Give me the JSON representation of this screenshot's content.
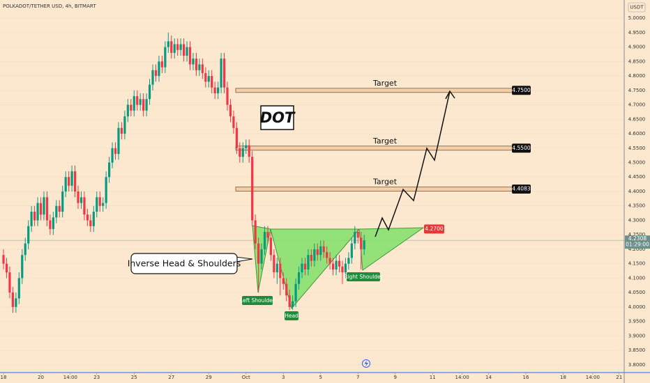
{
  "chart_data": {
    "type": "candlestick",
    "title": "POLKADOT/TETHER USD, 4h, BITMART",
    "y_unit": "USDT",
    "x": [
      0,
      4,
      8,
      12,
      16,
      20,
      24,
      28,
      32,
      36,
      40,
      44,
      48,
      52,
      56,
      60,
      64,
      68,
      72,
      76,
      80,
      84,
      88,
      92,
      96,
      100,
      104,
      108,
      112,
      116,
      120,
      124,
      128,
      132,
      136,
      140,
      144,
      148,
      152,
      156,
      160,
      164,
      168,
      172,
      176,
      180,
      184,
      188,
      192,
      196,
      200,
      204,
      208,
      212,
      216,
      220,
      224,
      228,
      232,
      236,
      240,
      244,
      248,
      252,
      256,
      260,
      264,
      268,
      272,
      276,
      280,
      284,
      288,
      292,
      296,
      300,
      304,
      308,
      312,
      316,
      320,
      324,
      328,
      332,
      336,
      340,
      344,
      348,
      352,
      356,
      360,
      364,
      368,
      372,
      376,
      380,
      384,
      388,
      392,
      396,
      400,
      404,
      408,
      412,
      416,
      420,
      424,
      428,
      432,
      436,
      440,
      444,
      448,
      452,
      456,
      460,
      464
    ],
    "open": [
      4.18,
      4.15,
      4.12,
      4.05,
      4.0,
      4.03,
      4.1,
      4.18,
      4.22,
      4.28,
      4.33,
      4.3,
      4.36,
      4.32,
      4.38,
      4.3,
      4.27,
      4.31,
      4.35,
      4.33,
      4.4,
      4.45,
      4.42,
      4.47,
      4.4,
      4.36,
      4.38,
      4.32,
      4.3,
      4.28,
      4.33,
      4.38,
      4.35,
      4.36,
      4.45,
      4.5,
      4.55,
      4.53,
      4.62,
      4.6,
      4.66,
      4.7,
      4.68,
      4.73,
      4.7,
      4.72,
      4.68,
      4.72,
      4.77,
      4.82,
      4.8,
      4.85,
      4.83,
      4.9,
      4.92,
      4.88,
      4.91,
      4.89,
      4.91,
      4.87,
      4.9,
      4.84,
      4.86,
      4.82,
      4.84,
      4.81,
      4.78,
      4.8,
      4.76,
      4.74,
      4.76,
      4.86,
      4.76,
      4.7,
      4.66,
      4.62,
      4.55,
      4.52,
      4.55,
      4.56,
      4.52,
      4.3,
      4.22,
      4.15,
      4.2,
      4.26,
      4.24,
      4.18,
      4.12,
      4.15,
      4.1,
      4.08,
      4.04,
      4.0,
      4.02,
      4.08,
      4.12,
      4.15,
      4.13,
      4.18,
      4.16,
      4.2,
      4.18,
      4.21,
      4.19,
      4.17,
      4.15,
      4.13,
      4.16,
      4.14,
      4.12,
      4.15,
      4.17,
      4.22,
      4.26,
      4.24,
      4.2
    ],
    "high": [
      4.2,
      4.17,
      4.14,
      4.07,
      4.05,
      4.12,
      4.2,
      4.24,
      4.3,
      4.35,
      4.35,
      4.38,
      4.38,
      4.4,
      4.4,
      4.32,
      4.33,
      4.37,
      4.37,
      4.42,
      4.47,
      4.47,
      4.49,
      4.49,
      4.42,
      4.4,
      4.4,
      4.34,
      4.32,
      4.35,
      4.4,
      4.4,
      4.38,
      4.47,
      4.52,
      4.57,
      4.57,
      4.64,
      4.64,
      4.68,
      4.72,
      4.72,
      4.75,
      4.75,
      4.74,
      4.74,
      4.74,
      4.79,
      4.84,
      4.84,
      4.87,
      4.87,
      4.92,
      4.95,
      4.94,
      4.93,
      4.93,
      4.93,
      4.93,
      4.92,
      4.92,
      4.88,
      4.88,
      4.86,
      4.86,
      4.83,
      4.82,
      4.82,
      4.78,
      4.78,
      4.88,
      4.88,
      4.78,
      4.72,
      4.68,
      4.64,
      4.57,
      4.57,
      4.58,
      4.58,
      4.54,
      4.32,
      4.24,
      4.22,
      4.28,
      4.28,
      4.26,
      4.2,
      4.17,
      4.17,
      4.12,
      4.1,
      4.06,
      4.04,
      4.1,
      4.14,
      4.17,
      4.17,
      4.2,
      4.2,
      4.22,
      4.22,
      4.23,
      4.23,
      4.21,
      4.19,
      4.17,
      4.18,
      4.18,
      4.16,
      4.17,
      4.19,
      4.24,
      4.28,
      4.27,
      4.26,
      4.25
    ],
    "low": [
      4.13,
      4.1,
      4.03,
      3.98,
      3.98,
      4.01,
      4.08,
      4.16,
      4.2,
      4.26,
      4.28,
      4.28,
      4.3,
      4.3,
      4.28,
      4.25,
      4.25,
      4.29,
      4.31,
      4.31,
      4.38,
      4.4,
      4.4,
      4.38,
      4.34,
      4.34,
      4.3,
      4.28,
      4.26,
      4.26,
      4.31,
      4.33,
      4.33,
      4.34,
      4.43,
      4.48,
      4.51,
      4.51,
      4.58,
      4.58,
      4.64,
      4.66,
      4.66,
      4.68,
      4.68,
      4.66,
      4.66,
      4.7,
      4.75,
      4.78,
      4.78,
      4.81,
      4.81,
      4.88,
      4.86,
      4.86,
      4.87,
      4.87,
      4.85,
      4.85,
      4.82,
      4.82,
      4.8,
      4.8,
      4.79,
      4.76,
      4.76,
      4.74,
      4.72,
      4.72,
      4.74,
      4.74,
      4.68,
      4.64,
      4.6,
      4.53,
      4.5,
      4.5,
      4.53,
      4.5,
      4.28,
      4.2,
      4.05,
      4.13,
      4.18,
      4.22,
      4.16,
      4.1,
      4.08,
      4.04,
      4.06,
      4.02,
      3.99,
      3.99,
      4.0,
      4.06,
      4.1,
      4.11,
      4.11,
      4.14,
      4.14,
      4.16,
      4.16,
      4.17,
      4.15,
      4.13,
      4.11,
      4.11,
      4.12,
      4.08,
      4.1,
      4.13,
      4.15,
      4.2,
      4.22,
      4.13,
      4.18
    ],
    "close": [
      4.15,
      4.12,
      4.05,
      4.0,
      4.03,
      4.1,
      4.18,
      4.22,
      4.28,
      4.33,
      4.3,
      4.36,
      4.32,
      4.38,
      4.3,
      4.27,
      4.31,
      4.35,
      4.33,
      4.4,
      4.45,
      4.42,
      4.47,
      4.4,
      4.36,
      4.38,
      4.32,
      4.3,
      4.28,
      4.33,
      4.38,
      4.35,
      4.36,
      4.45,
      4.5,
      4.55,
      4.53,
      4.62,
      4.6,
      4.66,
      4.7,
      4.68,
      4.73,
      4.7,
      4.72,
      4.68,
      4.72,
      4.77,
      4.82,
      4.8,
      4.85,
      4.83,
      4.9,
      4.92,
      4.88,
      4.91,
      4.89,
      4.91,
      4.87,
      4.9,
      4.84,
      4.86,
      4.82,
      4.84,
      4.81,
      4.78,
      4.8,
      4.76,
      4.74,
      4.76,
      4.86,
      4.76,
      4.7,
      4.66,
      4.62,
      4.55,
      4.52,
      4.55,
      4.56,
      4.52,
      4.3,
      4.22,
      4.15,
      4.2,
      4.26,
      4.24,
      4.18,
      4.12,
      4.15,
      4.1,
      4.08,
      4.04,
      4.0,
      4.02,
      4.08,
      4.12,
      4.15,
      4.13,
      4.18,
      4.16,
      4.2,
      4.18,
      4.21,
      4.19,
      4.17,
      4.15,
      4.13,
      4.16,
      4.14,
      4.12,
      4.15,
      4.17,
      4.22,
      4.26,
      4.24,
      4.2,
      4.2308
    ],
    "up_color": "#089981",
    "down_color": "#f23645",
    "xlim": [
      -4.5,
      798.5
    ],
    "xticks": [
      {
        "value": 0,
        "label": "18"
      },
      {
        "value": 48,
        "label": "20"
      },
      {
        "value": 86,
        "label": "14:00"
      },
      {
        "value": 120,
        "label": "23"
      },
      {
        "value": 168,
        "label": "25"
      },
      {
        "value": 216,
        "label": "27"
      },
      {
        "value": 264,
        "label": "29"
      },
      {
        "value": 312,
        "label": "Oct"
      },
      {
        "value": 360,
        "label": "3"
      },
      {
        "value": 408,
        "label": "5"
      },
      {
        "value": 456,
        "label": "7"
      },
      {
        "value": 504,
        "label": "9"
      },
      {
        "value": 552,
        "label": "11"
      },
      {
        "value": 590,
        "label": "14:00"
      },
      {
        "value": 624,
        "label": "14"
      },
      {
        "value": 672,
        "label": "16"
      },
      {
        "value": 720,
        "label": "18"
      },
      {
        "value": 758,
        "label": "14:00"
      },
      {
        "value": 792,
        "label": "21"
      }
    ],
    "ylim": [
      3.773,
      5.063
    ],
    "yticks": [
      {
        "value": 3.8,
        "label": "3.8000"
      },
      {
        "value": 3.85,
        "label": "3.8500"
      },
      {
        "value": 3.9,
        "label": "3.9000"
      },
      {
        "value": 3.95,
        "label": "3.9500"
      },
      {
        "value": 4.0,
        "label": "4.0000"
      },
      {
        "value": 4.05,
        "label": "4.0500"
      },
      {
        "value": 4.1,
        "label": "4.1000"
      },
      {
        "value": 4.15,
        "label": "4.1500"
      },
      {
        "value": 4.2,
        "label": "4.2000"
      },
      {
        "value": 4.25,
        "label": "4.2500"
      },
      {
        "value": 4.3,
        "label": "4.3000"
      },
      {
        "value": 4.35,
        "label": "4.3500"
      },
      {
        "value": 4.4,
        "label": "4.4000"
      },
      {
        "value": 4.45,
        "label": "4.4500"
      },
      {
        "value": 4.5,
        "label": "4.5000"
      },
      {
        "value": 4.55,
        "label": "4.5500"
      },
      {
        "value": 4.6,
        "label": "4.6000"
      },
      {
        "value": 4.65,
        "label": "4.6500"
      },
      {
        "value": 4.7,
        "label": "4.7000"
      },
      {
        "value": 4.75,
        "label": "4.7500"
      },
      {
        "value": 4.8,
        "label": "4.8000"
      },
      {
        "value": 4.85,
        "label": "4.8500"
      },
      {
        "value": 4.9,
        "label": "4.9000"
      },
      {
        "value": 4.95,
        "label": "4.9500"
      },
      {
        "value": 5.0,
        "label": "5.0000"
      }
    ],
    "targets": [
      {
        "text": "Target",
        "value": 4.75,
        "label": "4.7500"
      },
      {
        "text": "Target",
        "value": 4.55,
        "label": "4.5500"
      },
      {
        "text": "Target",
        "value": 4.4083,
        "label": "4.4083"
      }
    ],
    "neckline": {
      "value": 4.27,
      "label": "4.2700"
    },
    "last_price": {
      "value": 4.2308,
      "label": "4.2308",
      "countdown": "01:29:00"
    },
    "annotations": {
      "symbol": "DOT",
      "pattern": "Inverse Head & Shoulders",
      "left_shoulder": "Left Shoulder",
      "head": "Head",
      "right_shoulder": "Right Shoulder"
    }
  }
}
